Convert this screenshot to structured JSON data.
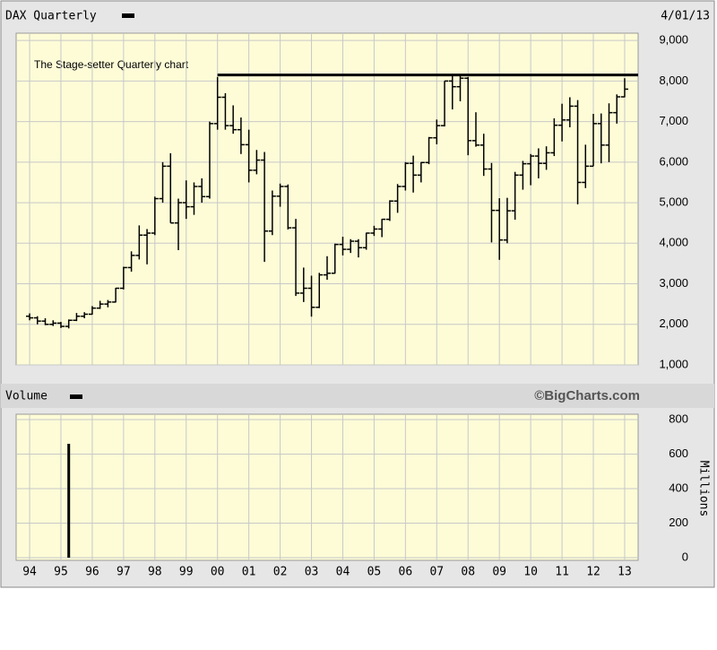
{
  "chart_data": [
    {
      "type": "ohlc",
      "title": "DAX Quarterly",
      "date": "4/01/13",
      "annotation": "The Stage-setter Quarterly chart",
      "annotation_line": {
        "value": 8150,
        "x_start": 2000
      },
      "x": [
        1994,
        1994.25,
        1994.5,
        1994.75,
        1995,
        1995.25,
        1995.5,
        1995.75,
        1996,
        1996.25,
        1996.5,
        1996.75,
        1997,
        1997.25,
        1997.5,
        1997.75,
        1998,
        1998.25,
        1998.5,
        1998.75,
        1999,
        1999.25,
        1999.5,
        1999.75,
        2000,
        2000.25,
        2000.5,
        2000.75,
        2001,
        2001.25,
        2001.5,
        2001.75,
        2002,
        2002.25,
        2002.5,
        2002.75,
        2003,
        2003.25,
        2003.5,
        2003.75,
        2004,
        2004.25,
        2004.5,
        2004.75,
        2005,
        2005.25,
        2005.5,
        2005.75,
        2006,
        2006.25,
        2006.5,
        2006.75,
        2007,
        2007.25,
        2007.5,
        2007.75,
        2008,
        2008.25,
        2008.5,
        2008.75,
        2009,
        2009.25,
        2009.5,
        2009.75,
        2010,
        2010.25,
        2010.5,
        2010.75,
        2011,
        2011.25,
        2011.5,
        2011.75,
        2012,
        2012.25,
        2012.5,
        2012.75,
        2013
      ],
      "open": [
        2200,
        2160,
        2080,
        2000,
        2030,
        1950,
        2100,
        2200,
        2250,
        2400,
        2500,
        2550,
        2890,
        3400,
        3700,
        4200,
        4250,
        5100,
        5900,
        4500,
        5000,
        4900,
        5400,
        5150,
        6950,
        7600,
        6900,
        6800,
        6430,
        5800,
        6050,
        4300,
        5160,
        5400,
        4380,
        2770,
        2890,
        2420,
        3220,
        3260,
        3970,
        3850,
        4050,
        3890,
        4250,
        4350,
        4590,
        5040,
        5400,
        5970,
        5680,
        5990,
        6600,
        6900,
        8000,
        7860,
        8070,
        6530,
        6420,
        5830,
        4810,
        4080,
        4800,
        5680,
        5960,
        6150,
        5970,
        6230,
        6910,
        7040,
        7380,
        5500,
        5900,
        6950,
        6420,
        7220,
        7610
      ],
      "high": [
        2270,
        2200,
        2150,
        2100,
        2060,
        2120,
        2280,
        2300,
        2450,
        2580,
        2600,
        2900,
        3420,
        3800,
        4440,
        4350,
        5150,
        6000,
        6220,
        5100,
        5550,
        5500,
        5600,
        7000,
        8100,
        7700,
        7400,
        7100,
        6800,
        6300,
        6250,
        5300,
        5470,
        5450,
        4600,
        3400,
        3200,
        3270,
        3680,
        3990,
        4160,
        4100,
        4100,
        4260,
        4430,
        4600,
        5060,
        5460,
        6000,
        6160,
        6000,
        6620,
        7050,
        8000,
        8150,
        8150,
        8100,
        7230,
        6700,
        5980,
        5110,
        5120,
        5760,
        6030,
        6200,
        6340,
        6390,
        7080,
        7440,
        7600,
        7530,
        6430,
        7190,
        7200,
        7450,
        7670,
        8070
      ],
      "low": [
        2100,
        2000,
        1980,
        1960,
        1910,
        1900,
        2080,
        2150,
        2240,
        2380,
        2420,
        2540,
        2860,
        3300,
        3600,
        3480,
        4200,
        5000,
        4500,
        3830,
        4600,
        4700,
        5000,
        5100,
        6800,
        6800,
        6700,
        6200,
        5500,
        5700,
        3540,
        4200,
        4900,
        4340,
        2700,
        2550,
        2190,
        2400,
        3100,
        3250,
        3700,
        3760,
        3650,
        3840,
        4180,
        4150,
        4550,
        4750,
        5300,
        5250,
        5500,
        5950,
        6440,
        6880,
        7300,
        7500,
        6170,
        6380,
        5660,
        4020,
        3590,
        4000,
        4580,
        5320,
        5430,
        5600,
        5810,
        6150,
        6510,
        6860,
        4960,
        5360,
        5900,
        5970,
        6000,
        6950,
        7600
      ],
      "close": [
        2160,
        2080,
        2000,
        2030,
        1950,
        2100,
        2200,
        2250,
        2400,
        2500,
        2550,
        2890,
        3400,
        3700,
        4200,
        4250,
        5100,
        5900,
        4500,
        5000,
        4900,
        5400,
        5150,
        6950,
        7600,
        6900,
        6800,
        6430,
        5800,
        6050,
        4300,
        5160,
        5400,
        4380,
        2770,
        2890,
        2420,
        3220,
        3260,
        3970,
        3850,
        4050,
        3890,
        4250,
        4350,
        4590,
        5040,
        5400,
        5970,
        5680,
        5990,
        6600,
        6900,
        8000,
        7860,
        8070,
        6530,
        6420,
        5830,
        4810,
        4080,
        4800,
        5680,
        5960,
        6150,
        5970,
        6230,
        6910,
        7040,
        7380,
        5500,
        5900,
        6950,
        6420,
        7220,
        7610,
        7800
      ],
      "color": "#000000",
      "grid": true,
      "xlim": [
        1993.57,
        2013.43
      ],
      "ylim": [
        1000,
        9180
      ],
      "yticks": [
        {
          "value": 1000,
          "label": "1,000"
        },
        {
          "value": 2000,
          "label": "2,000"
        },
        {
          "value": 3000,
          "label": "3,000"
        },
        {
          "value": 4000,
          "label": "4,000"
        },
        {
          "value": 5000,
          "label": "5,000"
        },
        {
          "value": 6000,
          "label": "6,000"
        },
        {
          "value": 7000,
          "label": "7,000"
        },
        {
          "value": 8000,
          "label": "8,000"
        },
        {
          "value": 9000,
          "label": "9,000"
        }
      ]
    },
    {
      "type": "bar",
      "title": "Volume",
      "credit": "©BigCharts.com",
      "y_label": "Millions",
      "x": [
        1995.25
      ],
      "values": [
        660
      ],
      "color": "#000000",
      "grid": true,
      "xlim": [
        1993.57,
        2013.43
      ],
      "ylim": [
        0,
        800
      ],
      "yticks": [
        0,
        200,
        400,
        600,
        800
      ],
      "xticks": [
        {
          "value": 1994,
          "label": "94"
        },
        {
          "value": 1995,
          "label": "95"
        },
        {
          "value": 1996,
          "label": "96"
        },
        {
          "value": 1997,
          "label": "97"
        },
        {
          "value": 1998,
          "label": "98"
        },
        {
          "value": 1999,
          "label": "99"
        },
        {
          "value": 2000,
          "label": "00"
        },
        {
          "value": 2001,
          "label": "01"
        },
        {
          "value": 2002,
          "label": "02"
        },
        {
          "value": 2003,
          "label": "03"
        },
        {
          "value": 2004,
          "label": "04"
        },
        {
          "value": 2005,
          "label": "05"
        },
        {
          "value": 2006,
          "label": "06"
        },
        {
          "value": 2007,
          "label": "07"
        },
        {
          "value": 2008,
          "label": "08"
        },
        {
          "value": 2009,
          "label": "09"
        },
        {
          "value": 2010,
          "label": "10"
        },
        {
          "value": 2011,
          "label": "11"
        },
        {
          "value": 2012,
          "label": "12"
        },
        {
          "value": 2013,
          "label": "13"
        }
      ]
    }
  ]
}
